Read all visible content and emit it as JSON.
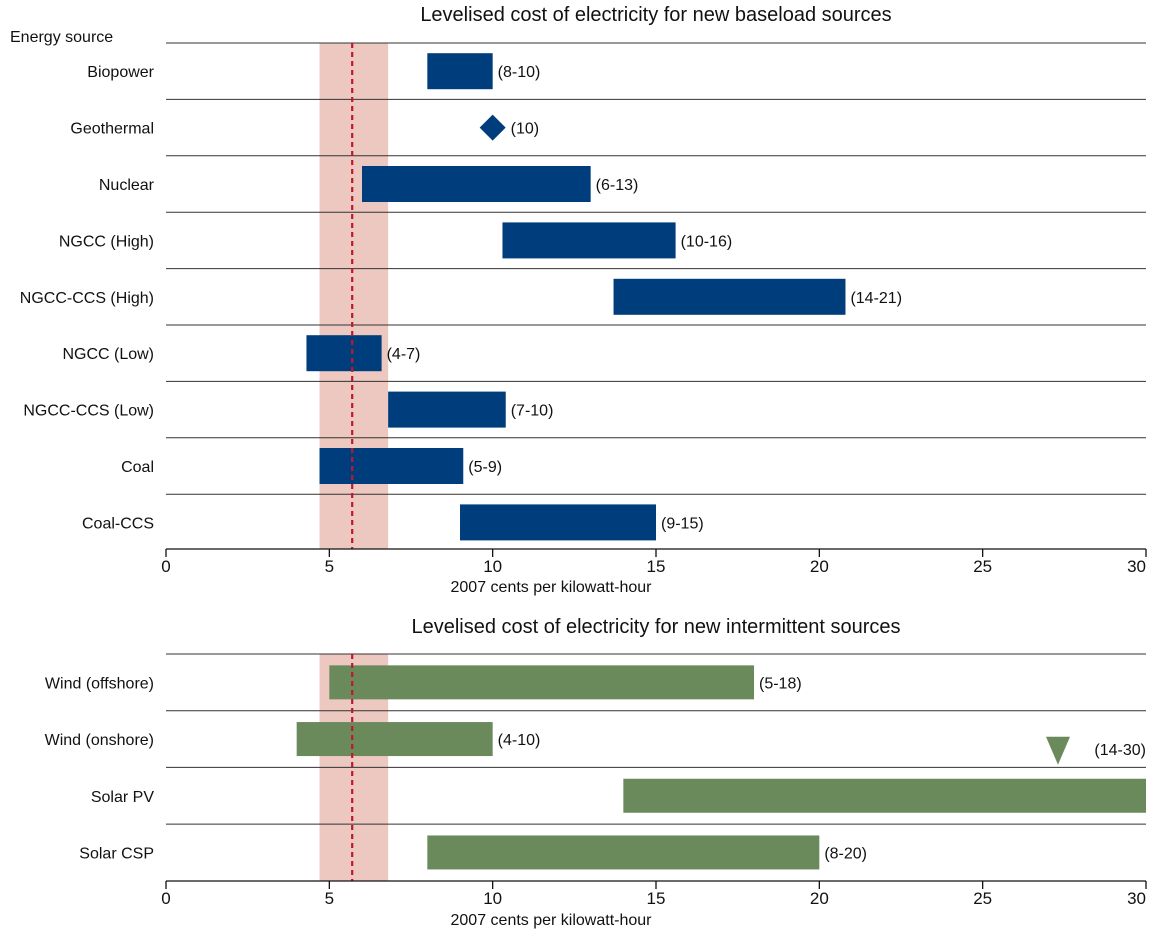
{
  "chart_data": [
    {
      "type": "range_bar",
      "title": "Levelised cost of electricity for new baseload sources",
      "category_header": "Energy source",
      "xlabel": "2007 cents per kilowatt-hour",
      "xlim": [
        0,
        30
      ],
      "xticks": [
        0,
        5,
        10,
        15,
        20,
        25,
        30
      ],
      "bar_color": "#003d7c",
      "reference_band": [
        4.7,
        6.8
      ],
      "reference_line": 5.7,
      "band_color": "#ecc8c0",
      "line_color": "#c0182a",
      "grid": false,
      "rows": [
        {
          "category": "Biopower",
          "low": 8,
          "high": 10,
          "label": "(8-10)"
        },
        {
          "category": "Geothermal",
          "low": 10,
          "high": 10,
          "label": "(10)",
          "marker": "diamond"
        },
        {
          "category": "Nuclear",
          "low": 6,
          "high": 13,
          "label": "(6-13)"
        },
        {
          "category": "NGCC (High)",
          "low": 10.3,
          "high": 15.6,
          "label": "(10-16)"
        },
        {
          "category": "NGCC-CCS (High)",
          "low": 13.7,
          "high": 20.8,
          "label": "(14-21)"
        },
        {
          "category": "NGCC (Low)",
          "low": 4.3,
          "high": 6.6,
          "label": "(4-7)"
        },
        {
          "category": "NGCC-CCS (Low)",
          "low": 6.8,
          "high": 10.4,
          "label": "(7-10)"
        },
        {
          "category": "Coal",
          "low": 4.7,
          "high": 9.1,
          "label": "(5-9)"
        },
        {
          "category": "Coal-CCS",
          "low": 9,
          "high": 15,
          "label": "(9-15)"
        }
      ]
    },
    {
      "type": "range_bar",
      "title": "Levelised cost of electricity for new intermittent sources",
      "xlabel": "2007 cents per kilowatt-hour",
      "xlim": [
        0,
        30
      ],
      "xticks": [
        0,
        5,
        10,
        15,
        20,
        25,
        30
      ],
      "bar_color": "#6b8a5c",
      "reference_band": [
        4.7,
        6.8
      ],
      "reference_line": 5.7,
      "band_color": "#ecc8c0",
      "line_color": "#c0182a",
      "grid": false,
      "rows": [
        {
          "category": "Wind (offshore)",
          "low": 5,
          "high": 18,
          "label": "(5-18)"
        },
        {
          "category": "Wind (onshore)",
          "low": 4,
          "high": 10,
          "label": "(4-10)"
        },
        {
          "category": "Solar PV",
          "low": 14,
          "high": 30,
          "label": "(14-30)",
          "overflow_marker": "triangle-down"
        },
        {
          "category": "Solar CSP",
          "low": 8,
          "high": 20,
          "label": "(8-20)"
        }
      ]
    }
  ]
}
